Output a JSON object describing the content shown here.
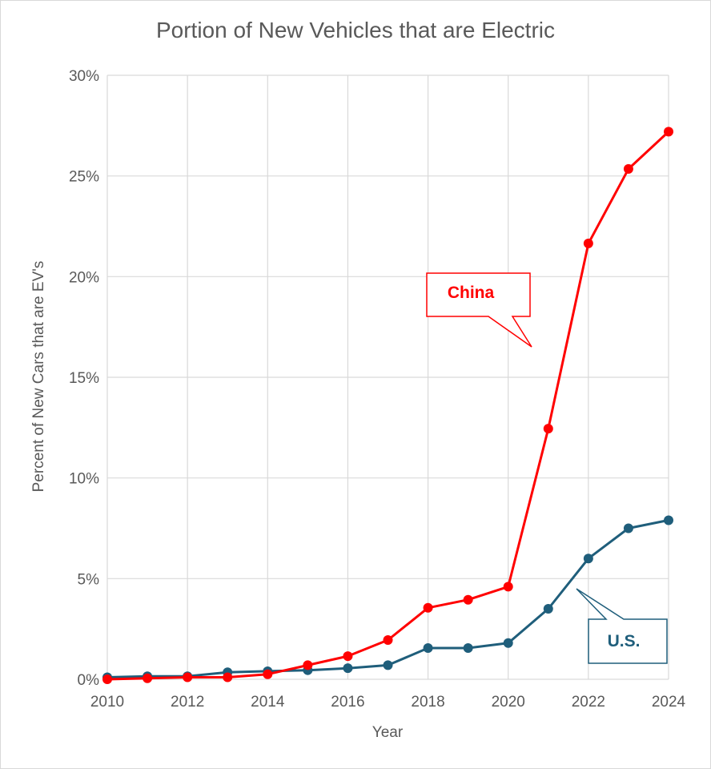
{
  "chart_data": {
    "type": "line",
    "title": "Portion of New Vehicles that are Electric",
    "xlabel": "Year",
    "ylabel": "Percent of New Cars that are EV's",
    "xlim": [
      2010,
      2024
    ],
    "ylim": [
      0,
      30
    ],
    "x_ticks": [
      "2010",
      "2012",
      "2014",
      "2016",
      "2018",
      "2020",
      "2022",
      "2024"
    ],
    "y_ticks": [
      "0%",
      "5%",
      "10%",
      "15%",
      "20%",
      "25%",
      "30%"
    ],
    "grid": true,
    "x": [
      2010,
      2011,
      2012,
      2013,
      2014,
      2015,
      2016,
      2017,
      2018,
      2019,
      2020,
      2021,
      2022,
      2023,
      2024
    ],
    "series": [
      {
        "name": "U.S.",
        "color": "#1f5e7b",
        "values": [
          0.1,
          0.15,
          0.15,
          0.35,
          0.4,
          0.45,
          0.55,
          0.7,
          1.55,
          1.55,
          1.8,
          3.5,
          6.0,
          7.5,
          7.9
        ]
      },
      {
        "name": "China",
        "color": "#ff0000",
        "values": [
          0.0,
          0.05,
          0.1,
          0.1,
          0.25,
          0.7,
          1.15,
          1.95,
          3.55,
          3.95,
          4.6,
          12.45,
          21.65,
          25.35,
          27.2
        ]
      }
    ],
    "annotations": [
      "China",
      "U.S."
    ]
  }
}
